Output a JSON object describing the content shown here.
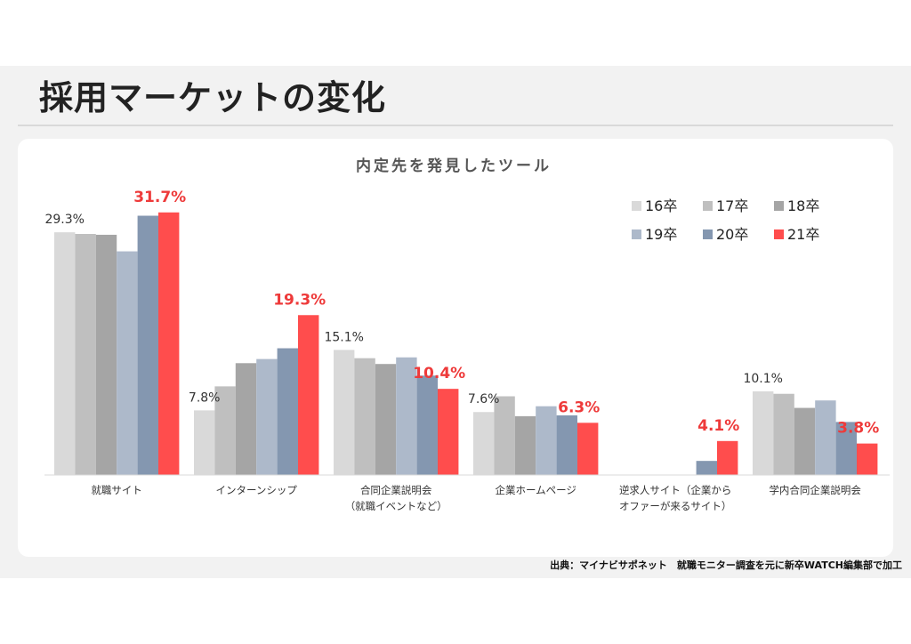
{
  "slide": {
    "title": "採用マーケットの変化",
    "source_note": "出典：マイナビサポネット　就職モニター調査を元に新卒WATCH編集部で加工"
  },
  "chart_data": {
    "type": "bar",
    "title": "内定先を発見したツール",
    "xlabel": "",
    "ylabel": "",
    "ylim": [
      0,
      32
    ],
    "grid": false,
    "legend_position": "top-right",
    "categories": [
      "就職サイト",
      "インターンシップ",
      "合同企業説明会\n（就職イベントなど）",
      "企業ホームページ",
      "逆求人サイト（企業から\nオファーが来るサイト）",
      "学内合同企業説明会"
    ],
    "series": [
      {
        "name": "16卒",
        "color": "#d9d9d9",
        "values": [
          29.3,
          7.8,
          15.1,
          7.6,
          0,
          10.1
        ]
      },
      {
        "name": "17卒",
        "color": "#bfbfbf",
        "values": [
          29.1,
          10.7,
          14.1,
          9.5,
          0,
          9.8
        ]
      },
      {
        "name": "18卒",
        "color": "#a5a5a5",
        "values": [
          29.0,
          13.5,
          13.4,
          7.1,
          0,
          8.1
        ]
      },
      {
        "name": "19卒",
        "color": "#adb9ca",
        "values": [
          27.0,
          14.0,
          14.2,
          8.3,
          0,
          9.0
        ]
      },
      {
        "name": "20卒",
        "color": "#8497b0",
        "values": [
          31.3,
          15.3,
          12.0,
          7.2,
          1.7,
          6.4
        ]
      },
      {
        "name": "21卒",
        "color": "#ff4d4d",
        "values": [
          31.7,
          19.3,
          10.4,
          6.3,
          4.1,
          3.8
        ]
      }
    ],
    "data_labels": [
      {
        "series": 0,
        "category": 0,
        "text": "29.3%",
        "style": "normal"
      },
      {
        "series": 5,
        "category": 0,
        "text": "31.7%",
        "style": "highlight"
      },
      {
        "series": 0,
        "category": 1,
        "text": "7.8%",
        "style": "normal"
      },
      {
        "series": 5,
        "category": 1,
        "text": "19.3%",
        "style": "highlight"
      },
      {
        "series": 0,
        "category": 2,
        "text": "15.1%",
        "style": "normal"
      },
      {
        "series": 5,
        "category": 2,
        "text": "10.4%",
        "style": "highlight"
      },
      {
        "series": 0,
        "category": 3,
        "text": "7.6%",
        "style": "normal"
      },
      {
        "series": 5,
        "category": 3,
        "text": "6.3%",
        "style": "highlight"
      },
      {
        "series": 5,
        "category": 4,
        "text": "4.1%",
        "style": "highlight"
      },
      {
        "series": 0,
        "category": 5,
        "text": "10.1%",
        "style": "normal"
      },
      {
        "series": 5,
        "category": 5,
        "text": "3.8%",
        "style": "highlight"
      }
    ]
  }
}
